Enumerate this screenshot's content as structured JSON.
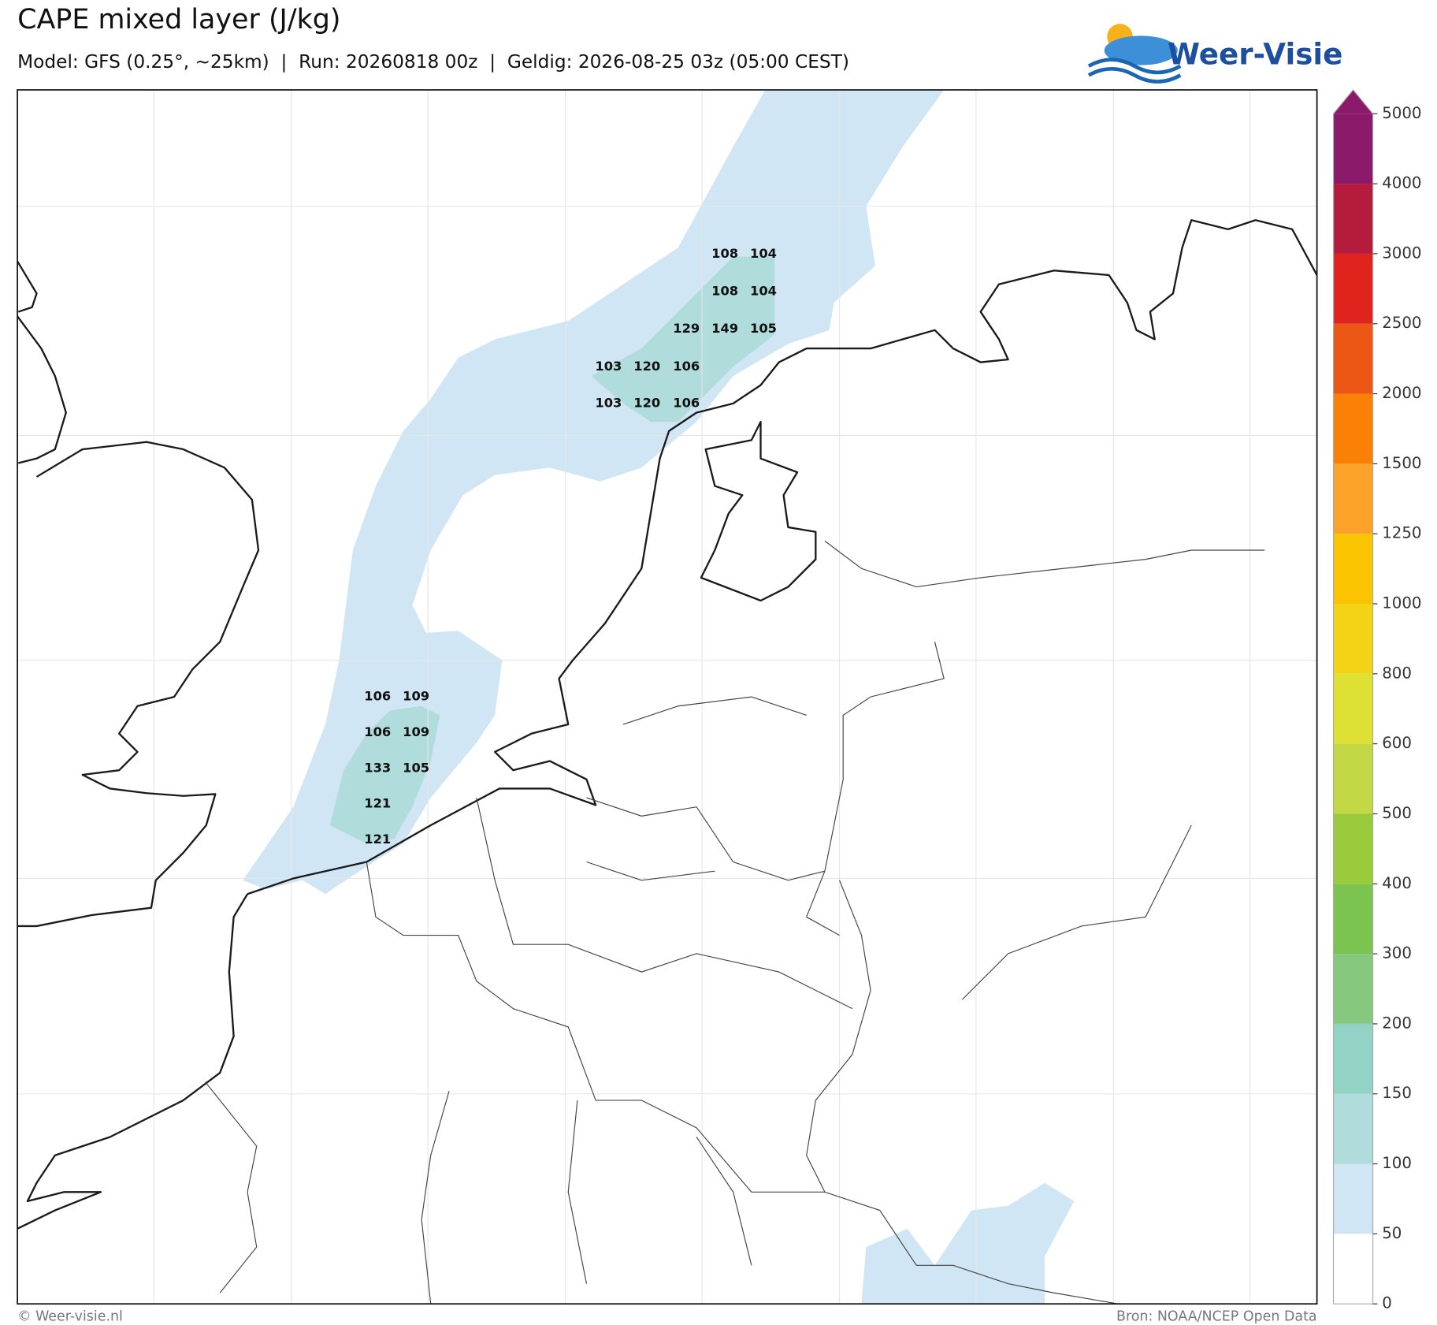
{
  "header": {
    "title": "CAPE mixed layer (J/kg)",
    "subtitle": "Model: GFS (0.25°, ~25km)  |  Run: 20260818 00z  |  Geldig: 2026-08-25 03z (05:00 CEST)",
    "logo": "Weer-Visie"
  },
  "map": {
    "labels": [
      108,
      104,
      108,
      104,
      129,
      149,
      105,
      103,
      120,
      106,
      103,
      120,
      106,
      106,
      109,
      106,
      109,
      133,
      105,
      121,
      121
    ]
  },
  "colorbar": {
    "levels": [
      0,
      50,
      100,
      150,
      200,
      300,
      400,
      500,
      600,
      800,
      1000,
      1250,
      1500,
      2000,
      2500,
      3000,
      4000,
      5000
    ],
    "colors": [
      "#ffffff",
      "#d0e6f5",
      "#b0dcdc",
      "#93d3c5",
      "#86c97e",
      "#7ac44f",
      "#9acb3c",
      "#c3d844",
      "#dfe034",
      "#f2d316",
      "#fbc400",
      "#fca12a",
      "#fb8106",
      "#ec5716",
      "#e0241d",
      "#b41b3d",
      "#8b1a6b"
    ]
  },
  "footer": {
    "credit": "© Weer-visie.nl",
    "source": "Bron: NOAA/NCEP Open Data"
  }
}
